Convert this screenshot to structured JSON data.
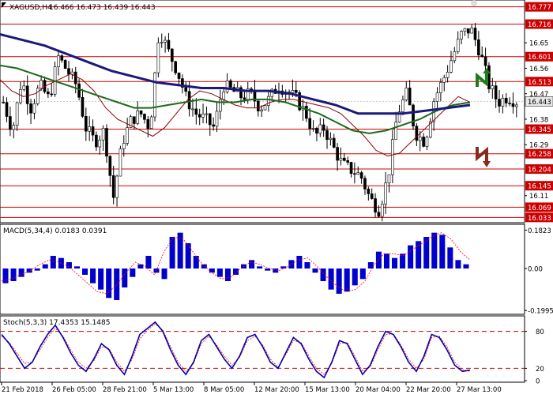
{
  "header": {
    "symbol": "XAGUSD,H4",
    "ohlc": "16.466 16.473 16.439 16.443"
  },
  "colors": {
    "candle": "#000000",
    "ma_fast": "#8b0000",
    "ma_mid": "#1a6b1a",
    "ma_slow": "#1a1a7a",
    "level_line": "#cc0000",
    "level_label_bg": "#cc0000",
    "current_label_bg": "#e8e8e8",
    "macd_hist": "#0000cc",
    "macd_signal": "#ff0000",
    "stoch_main": "#0000aa",
    "stoch_signal": "#ff0000",
    "arrow_up": "#1e7b1e",
    "arrow_down": "#8b2a1a"
  },
  "chart_data": [
    {
      "type": "candlestick",
      "title": "XAGUSD,H4 16.466 16.473 16.439 16.443",
      "ylim": [
        16.02,
        16.79
      ],
      "yticks": [
        16.777,
        16.716,
        16.65,
        16.601,
        16.56,
        16.513,
        16.47,
        16.443,
        16.38,
        16.345,
        16.29,
        16.258,
        16.204,
        16.145,
        16.11,
        16.069,
        16.033
      ],
      "resistance_levels": [
        16.777,
        16.716,
        16.601,
        16.513
      ],
      "support_levels": [
        16.345,
        16.258,
        16.204,
        16.145,
        16.069,
        16.033
      ],
      "current_price": 16.443,
      "xlabels": [
        "21 Feb 2018",
        "26 Feb 05:00",
        "28 Feb 21:00",
        "5 Mar 13:00",
        "8 Mar 05:00",
        "12 Mar 20:00",
        "15 Mar 13:00",
        "20 Mar 04:00",
        "22 Mar 20:00",
        "27 Mar 13:00"
      ],
      "close_path": [
        16.44,
        16.34,
        16.52,
        16.42,
        16.5,
        16.45,
        16.6,
        16.55,
        16.5,
        16.35,
        16.3,
        16.34,
        16.1,
        16.3,
        16.38,
        16.4,
        16.35,
        16.7,
        16.62,
        16.55,
        16.45,
        16.4,
        16.38,
        16.35,
        16.5,
        16.48,
        16.46,
        16.47,
        16.42,
        16.45,
        16.5,
        16.48,
        16.45,
        16.4,
        16.32,
        16.35,
        16.28,
        16.22,
        16.2,
        16.18,
        16.1,
        16.06,
        16.18,
        16.4,
        16.47,
        16.33,
        16.3,
        16.45,
        16.52,
        16.6,
        16.68,
        16.7,
        16.62,
        16.5,
        16.44,
        16.46,
        16.443
      ],
      "ma_fast": [
        16.52,
        16.48,
        16.46,
        16.47,
        16.5,
        16.52,
        16.54,
        16.52,
        16.48,
        16.42,
        16.38,
        16.36,
        16.34,
        16.32,
        16.35,
        16.4,
        16.45,
        16.48,
        16.47,
        16.45,
        16.43,
        16.42,
        16.42,
        16.44,
        16.45,
        16.45,
        16.44,
        16.43,
        16.42,
        16.4,
        16.36,
        16.32,
        16.27,
        16.25,
        16.26,
        16.3,
        16.34,
        16.38,
        16.42,
        16.46,
        16.44
      ],
      "ma_mid": [
        16.57,
        16.56,
        16.54,
        16.52,
        16.5,
        16.48,
        16.46,
        16.44,
        16.42,
        16.42,
        16.43,
        16.44,
        16.45,
        16.44,
        16.44,
        16.45,
        16.45,
        16.44,
        16.42,
        16.4,
        16.37,
        16.34,
        16.33,
        16.34,
        16.36,
        16.38,
        16.41,
        16.43,
        16.44
      ],
      "ma_slow": [
        16.68,
        16.66,
        16.64,
        16.61,
        16.58,
        16.55,
        16.53,
        16.51,
        16.5,
        16.49,
        16.49,
        16.48,
        16.48,
        16.47,
        16.45,
        16.43,
        16.4,
        16.4,
        16.4,
        16.41,
        16.42,
        16.43
      ]
    },
    {
      "type": "bar",
      "title": "MACD(5,34,4) 0.0183 0.0391",
      "ylim": [
        -0.21,
        0.195
      ],
      "yticks": [
        0.1823,
        0.0,
        -0.1995
      ],
      "ytick_labels": [
        "0.1823",
        "0.00",
        "-0.1995"
      ],
      "values": [
        -0.07,
        -0.06,
        -0.04,
        -0.02,
        -0.01,
        0.02,
        0.06,
        0.05,
        0.03,
        0.01,
        -0.03,
        -0.07,
        -0.1,
        -0.14,
        -0.15,
        -0.09,
        -0.04,
        0.02,
        0.06,
        -0.02,
        -0.05,
        0.15,
        0.17,
        0.12,
        0.06,
        0.02,
        -0.02,
        -0.04,
        -0.06,
        -0.03,
        0.02,
        0.04,
        0.01,
        -0.01,
        -0.02,
        0.01,
        0.04,
        0.06,
        0.03,
        -0.02,
        -0.06,
        -0.1,
        -0.12,
        -0.11,
        -0.08,
        -0.05,
        0.03,
        0.08,
        0.07,
        0.05,
        0.07,
        0.11,
        0.13,
        0.15,
        0.17,
        0.16,
        0.1,
        0.04,
        0.02
      ],
      "signal": [
        -0.06,
        -0.05,
        -0.03,
        -0.01,
        0.02,
        0.04,
        0.03,
        0.01,
        -0.03,
        -0.07,
        -0.11,
        -0.12,
        -0.08,
        -0.02,
        0.03,
        0.01,
        -0.03,
        0.08,
        0.15,
        0.14,
        0.08,
        0.02,
        -0.02,
        -0.05,
        -0.04,
        0.0,
        0.03,
        0.02,
        0.0,
        -0.01,
        0.01,
        0.04,
        0.05,
        0.01,
        -0.04,
        -0.08,
        -0.11,
        -0.1,
        -0.06,
        0.02,
        0.07,
        0.07,
        0.06,
        0.09,
        0.12,
        0.15,
        0.17,
        0.14,
        0.08,
        0.04
      ]
    },
    {
      "type": "line",
      "title": "Stoch(5,3,3) 17.4353 15.1485",
      "ylim": [
        0,
        100
      ],
      "yticks": [
        80,
        20,
        0
      ],
      "levels": [
        80,
        20
      ],
      "main": [
        75,
        60,
        40,
        20,
        30,
        55,
        75,
        90,
        70,
        45,
        25,
        15,
        35,
        60,
        50,
        25,
        10,
        40,
        75,
        85,
        95,
        80,
        50,
        25,
        10,
        30,
        65,
        75,
        55,
        35,
        20,
        40,
        70,
        75,
        55,
        30,
        20,
        45,
        70,
        60,
        35,
        15,
        5,
        30,
        65,
        60,
        35,
        10,
        25,
        55,
        80,
        75,
        55,
        30,
        15,
        40,
        75,
        70,
        50,
        25,
        15,
        17
      ],
      "signal": [
        72,
        62,
        45,
        28,
        30,
        50,
        70,
        85,
        72,
        50,
        30,
        20,
        32,
        55,
        52,
        30,
        15,
        35,
        68,
        82,
        92,
        82,
        55,
        30,
        15,
        28,
        60,
        72,
        58,
        40,
        25,
        38,
        65,
        72,
        58,
        35,
        22,
        42,
        65,
        62,
        40,
        20,
        10,
        28,
        60,
        62,
        40,
        15,
        22,
        50,
        75,
        76,
        58,
        35,
        20,
        35,
        70,
        72,
        55,
        30,
        18,
        15
      ]
    }
  ]
}
